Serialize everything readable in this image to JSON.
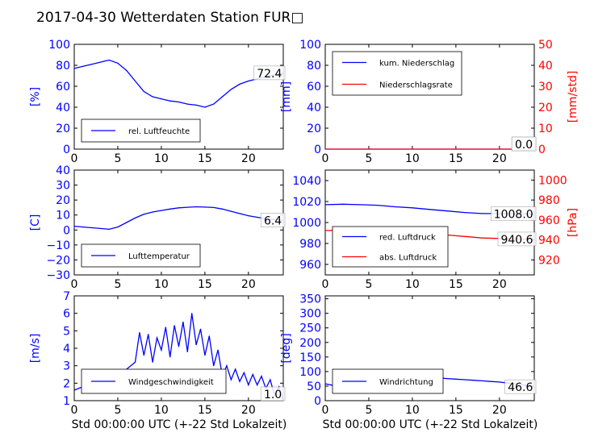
{
  "figure": {
    "title": "2017-04-30 Wetterdaten Station FUR□",
    "xlabel": "Std 00:00:00 UTC (+-22 Std Lokalzeit)"
  },
  "colors": {
    "left_axis": "#0000ff",
    "right_axis": "#ff0000",
    "series_blue": "#0000ff",
    "series_red": "#ff0000",
    "series_light": "#8080ff"
  },
  "chart_data": [
    {
      "id": "humidity",
      "type": "line",
      "ylabel": "[%]",
      "ylim": [
        0,
        100
      ],
      "yticks": [
        0,
        20,
        40,
        60,
        80,
        100
      ],
      "xlim": [
        0,
        24
      ],
      "xticks": [
        0,
        5,
        10,
        15,
        20
      ],
      "legend_location": "lower-left",
      "last_value_label": "72.4",
      "series": [
        {
          "name": "rel. Luftfeuchte",
          "color": "#0000ff",
          "axis": "left",
          "x": [
            0,
            1,
            2,
            3,
            4,
            5,
            6,
            7,
            8,
            9,
            10,
            11,
            12,
            13,
            14,
            15,
            16,
            17,
            18,
            19,
            20,
            21,
            22,
            23,
            24
          ],
          "y": [
            77,
            79,
            81,
            83,
            85,
            82,
            75,
            65,
            55,
            50,
            48,
            46,
            45,
            43,
            42,
            40,
            43,
            50,
            57,
            62,
            65,
            67,
            69,
            71,
            72.4
          ]
        }
      ]
    },
    {
      "id": "precip",
      "type": "line",
      "ylabel": "[mm]",
      "ylim": [
        0,
        100
      ],
      "yticks": [
        0,
        20,
        40,
        60,
        80,
        100
      ],
      "y2label": "[mm/std]",
      "y2lim": [
        0,
        50
      ],
      "y2ticks": [
        0,
        10,
        20,
        30,
        40,
        50
      ],
      "xlim": [
        0,
        24
      ],
      "xticks": [
        0,
        5,
        10,
        15,
        20
      ],
      "legend_location": "upper-left",
      "last_value_labels": [
        "0.0",
        "0.0"
      ],
      "series": [
        {
          "name": "kum. Niederschlag",
          "color": "#0000ff",
          "axis": "left",
          "x": [
            0,
            24
          ],
          "y": [
            0,
            0
          ]
        },
        {
          "name": "Niederschlagsrate",
          "color": "#ff0000",
          "axis": "right",
          "x": [
            0,
            24
          ],
          "y": [
            0,
            0
          ]
        }
      ]
    },
    {
      "id": "temperature",
      "type": "line",
      "ylabel": "[C]",
      "ylim": [
        -30,
        40
      ],
      "yticks": [
        -30,
        -20,
        -10,
        0,
        10,
        20,
        30,
        40
      ],
      "xlim": [
        0,
        24
      ],
      "xticks": [
        0,
        5,
        10,
        15,
        20
      ],
      "legend_location": "lower-left",
      "last_value_label": "6.4",
      "series": [
        {
          "name": "Lufttemperatur",
          "color": "#0000ff",
          "axis": "left",
          "x": [
            0,
            1,
            2,
            3,
            4,
            5,
            6,
            7,
            8,
            9,
            10,
            11,
            12,
            13,
            14,
            15,
            16,
            17,
            18,
            19,
            20,
            21,
            22,
            23,
            24
          ],
          "y": [
            2.5,
            2,
            1.5,
            1,
            0.5,
            2,
            5,
            8,
            10.5,
            12,
            13,
            14,
            14.8,
            15.2,
            15.5,
            15.3,
            15,
            14,
            12.5,
            11,
            9.5,
            8.5,
            7.5,
            7,
            6.4
          ]
        }
      ]
    },
    {
      "id": "pressure",
      "type": "line",
      "ylabel": "",
      "ylim": [
        950,
        1050
      ],
      "yticks": [
        960,
        980,
        1000,
        1020,
        1040
      ],
      "y2label": "[hPa]",
      "y2lim": [
        905,
        1010
      ],
      "y2ticks": [
        920,
        940,
        960,
        980,
        1000
      ],
      "xlim": [
        0,
        24
      ],
      "xticks": [
        0,
        5,
        10,
        15,
        20
      ],
      "legend_location": "lower-left",
      "last_value_labels": [
        "1008.0",
        "940.6"
      ],
      "series": [
        {
          "name": "red. Luftdruck",
          "color": "#0000ff",
          "axis": "left",
          "x": [
            0,
            2,
            4,
            6,
            8,
            10,
            12,
            14,
            16,
            18,
            20,
            22,
            24
          ],
          "y": [
            1017,
            1017.5,
            1017,
            1016.5,
            1015,
            1014,
            1012.5,
            1011,
            1009.5,
            1008.5,
            1008.5,
            1008.2,
            1008.0
          ]
        },
        {
          "name": "abs. Luftdruck",
          "color": "#ff0000",
          "axis": "right",
          "x": [
            0,
            2,
            4,
            6,
            8,
            10,
            12,
            14,
            16,
            18,
            20,
            22,
            24
          ],
          "y": [
            949.5,
            949.5,
            949,
            949,
            948.5,
            947.5,
            946,
            945,
            943.5,
            942,
            941.5,
            941,
            940.6
          ]
        }
      ]
    },
    {
      "id": "windspeed",
      "type": "line",
      "ylabel": "[m/s]",
      "ylim": [
        1,
        7
      ],
      "yticks": [
        1,
        2,
        3,
        4,
        5,
        6,
        7
      ],
      "xlim": [
        0,
        24
      ],
      "xticks": [
        0,
        5,
        10,
        15,
        20
      ],
      "legend_location": "lower-left",
      "last_value_label": "1.0",
      "series": [
        {
          "name": "Windgeschwindigkeit",
          "color": "#0000ff",
          "axis": "left",
          "x": [
            0,
            1,
            2,
            3,
            4,
            5,
            6,
            7,
            7.5,
            8,
            8.5,
            9,
            9.5,
            10,
            10.5,
            11,
            11.5,
            12,
            12.5,
            13,
            13.5,
            14,
            14.5,
            15,
            15.5,
            16,
            16.5,
            17,
            17.5,
            18,
            18.5,
            19,
            19.5,
            20,
            20.5,
            21,
            21.5,
            22,
            22.5,
            23,
            23.5,
            24
          ],
          "y": [
            1.6,
            1.8,
            1.5,
            1.7,
            1.9,
            2.0,
            2.8,
            3.2,
            4.9,
            3.6,
            4.8,
            3.2,
            4.6,
            3.9,
            5.2,
            3.5,
            5.3,
            4.1,
            5.5,
            3.8,
            6.0,
            4.2,
            5.1,
            3.6,
            4.7,
            3.0,
            3.9,
            2.4,
            3.0,
            2.2,
            2.8,
            2.1,
            2.6,
            1.9,
            2.5,
            1.9,
            2.4,
            1.7,
            2.2,
            1.3,
            1.8,
            1.0
          ]
        }
      ]
    },
    {
      "id": "winddir",
      "type": "line",
      "ylabel": "[deg]",
      "ylim": [
        0,
        360
      ],
      "yticks": [
        0,
        50,
        100,
        150,
        200,
        250,
        300,
        350
      ],
      "xlim": [
        0,
        24
      ],
      "xticks": [
        0,
        5,
        10,
        15,
        20
      ],
      "legend_location": "lower-left",
      "last_value_label": "46.6",
      "series": [
        {
          "name": "Windrichtung",
          "color": "#0000ff",
          "axis": "left",
          "x": [
            0,
            1,
            2,
            3,
            4,
            5,
            6,
            7,
            8,
            9,
            10,
            11,
            12,
            13,
            14,
            15,
            16,
            17,
            18,
            19,
            20,
            21,
            22,
            23,
            24
          ],
          "y": [
            58,
            52,
            55,
            50,
            60,
            70,
            90,
            85,
            95,
            88,
            92,
            82,
            80,
            78,
            76,
            74,
            72,
            70,
            68,
            66,
            64,
            60,
            58,
            52,
            46.6
          ]
        }
      ]
    }
  ]
}
